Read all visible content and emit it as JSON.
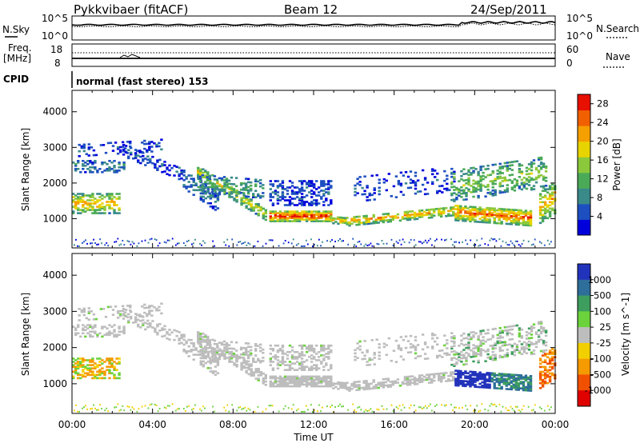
{
  "header": {
    "radar": "Pykkvibaer (fitACF)",
    "beam": "Beam 12",
    "date": "24/Sep/2011"
  },
  "strip_labels": {
    "nsky": "N.Sky",
    "nsky_ticks": [
      "10^5",
      "10^0"
    ],
    "nsearch": "N.Search",
    "nsearch_ticks": [
      "10^5",
      "10^0"
    ],
    "freq_line1": "Freq.",
    "freq_line2": "[MHz]",
    "freq_ticks": [
      "18",
      "8"
    ],
    "nave": "Nave",
    "nave_ticks": [
      "60",
      "0"
    ],
    "cpid": "CPID",
    "cpid_text": "normal (fast stereo) 153"
  },
  "colors": {
    "power_scale": [
      "#0000dd",
      "#1d4fc0",
      "#3a8a8a",
      "#4aaa58",
      "#8cc83c",
      "#e8d400",
      "#f5a000",
      "#f06000",
      "#e81000"
    ],
    "velocity_scale": [
      "#2233bb",
      "#2e6e9a",
      "#3d9e5e",
      "#6bd23c",
      "#bdbdbd",
      "#f2d000",
      "#f59a00",
      "#f05000",
      "#e00000"
    ],
    "ground_scatter": "#bdbdbd"
  },
  "chart_data": [
    {
      "type": "heatmap",
      "title": "Power",
      "ylabel": "Slant Range [km]",
      "xlabel": "Time UT",
      "x_ticks": [
        "00:00",
        "04:00",
        "08:00",
        "12:00",
        "16:00",
        "20:00",
        "00:00"
      ],
      "y_ticks": [
        1000,
        2000,
        3000,
        4000
      ],
      "xlim_hours": [
        0,
        24
      ],
      "ylim_km": [
        180,
        4600
      ],
      "colorbar": {
        "label": "Power [dB]",
        "ticks": [
          4,
          8,
          12,
          16,
          20,
          24,
          28
        ],
        "range": [
          0,
          30
        ]
      }
    },
    {
      "type": "heatmap",
      "title": "Velocity",
      "ylabel": "Slant Range [km]",
      "xlabel": "Time UT",
      "x_ticks": [
        "00:00",
        "04:00",
        "08:00",
        "12:00",
        "16:00",
        "20:00",
        "00:00"
      ],
      "y_ticks": [
        1000,
        2000,
        3000,
        4000
      ],
      "xlim_hours": [
        0,
        24
      ],
      "ylim_km": [
        180,
        4600
      ],
      "colorbar": {
        "label": "Velocity [m s^-1]",
        "ticks": [
          1000,
          500,
          100,
          25,
          -25,
          -100,
          -500,
          -1000
        ]
      }
    }
  ]
}
